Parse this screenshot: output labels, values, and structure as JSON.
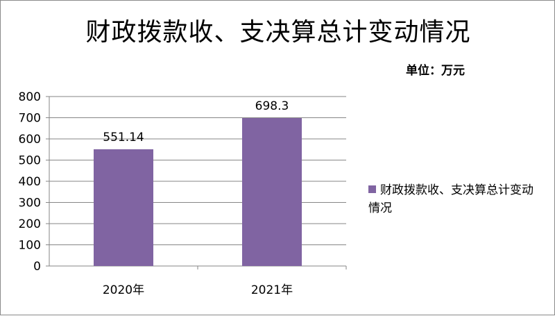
{
  "title": "财政拨款收、支决算总计变动情况",
  "unit_label": "单位：万元",
  "colors": {
    "bar": "#8064A2",
    "grid": "#868686",
    "axis": "#868686"
  },
  "chart_data": {
    "type": "bar",
    "title": "财政拨款收、支决算总计变动情况",
    "categories": [
      "2020年",
      "2021年"
    ],
    "series": [
      {
        "name": "财政拨款收、支决算总计变动情况",
        "values": [
          551.14,
          698.3
        ]
      }
    ],
    "data_labels": [
      "551.14",
      "698.3"
    ],
    "ylim": [
      0,
      800
    ],
    "yticks": [
      0,
      100,
      200,
      300,
      400,
      500,
      600,
      700,
      800
    ],
    "grid": true,
    "legend_position": "right"
  }
}
